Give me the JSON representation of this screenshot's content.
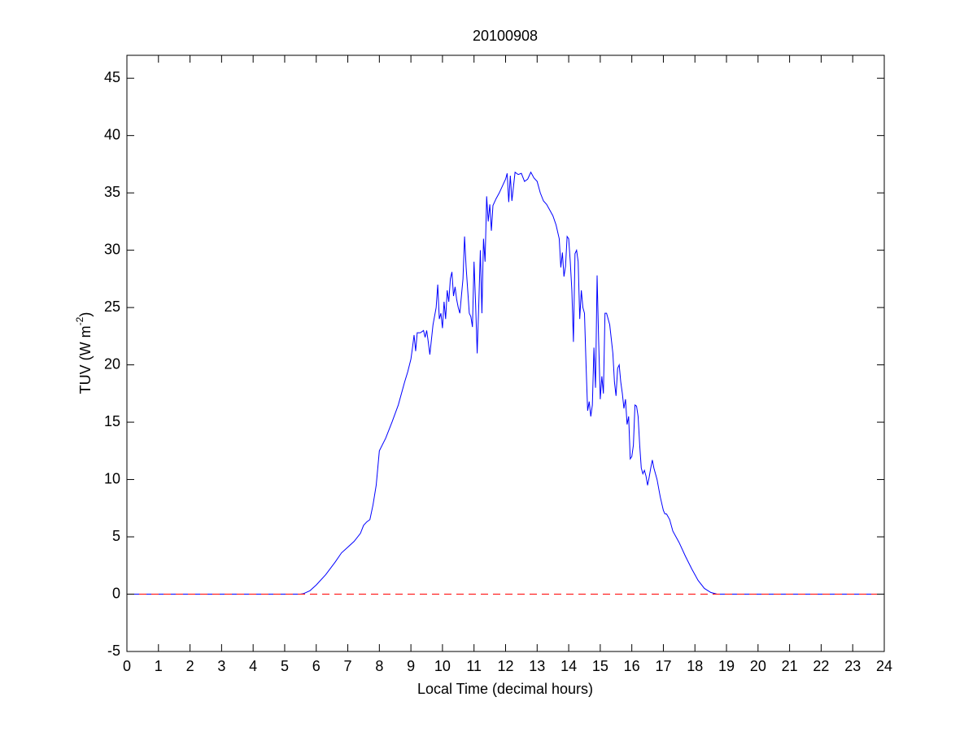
{
  "chart_data": {
    "type": "line",
    "title": "20100908",
    "xlabel": "Local Time (decimal hours)",
    "ylabel": [
      "TUV (W m",
      "-2",
      ")"
    ],
    "xlim": [
      0,
      24
    ],
    "ylim": [
      -5,
      47
    ],
    "xticks": [
      0,
      1,
      2,
      3,
      4,
      5,
      6,
      7,
      8,
      9,
      10,
      11,
      12,
      13,
      14,
      15,
      16,
      17,
      18,
      19,
      20,
      21,
      22,
      23,
      24
    ],
    "yticks": [
      -5,
      0,
      5,
      10,
      15,
      20,
      25,
      30,
      35,
      40,
      45
    ],
    "grid": false,
    "box": true,
    "series": [
      {
        "color": "#0000ff",
        "style": "solid",
        "x": [
          0,
          5.5,
          5.6,
          5.8,
          6,
          6.3,
          6.6,
          6.8,
          7,
          7.2,
          7.4,
          7.5,
          7.6,
          7.7,
          7.8,
          7.9,
          7.95,
          8,
          8.2,
          8.4,
          8.6,
          8.8,
          8.9,
          9,
          9.05,
          9.1,
          9.15,
          9.2,
          9.3,
          9.4,
          9.45,
          9.5,
          9.55,
          9.6,
          9.7,
          9.8,
          9.85,
          9.9,
          9.95,
          10,
          10.05,
          10.1,
          10.15,
          10.2,
          10.25,
          10.3,
          10.35,
          10.4,
          10.45,
          10.5,
          10.55,
          10.6,
          10.65,
          10.7,
          10.75,
          10.8,
          10.85,
          10.9,
          10.95,
          11,
          11.05,
          11.1,
          11.15,
          11.2,
          11.25,
          11.3,
          11.35,
          11.4,
          11.45,
          11.5,
          11.55,
          11.6,
          11.7,
          11.8,
          11.9,
          12,
          12.05,
          12.1,
          12.15,
          12.2,
          12.3,
          12.4,
          12.5,
          12.6,
          12.7,
          12.8,
          12.9,
          13,
          13.1,
          13.2,
          13.3,
          13.4,
          13.5,
          13.6,
          13.7,
          13.75,
          13.8,
          13.85,
          13.9,
          13.95,
          14,
          14.05,
          14.1,
          14.15,
          14.2,
          14.25,
          14.3,
          14.35,
          14.4,
          14.45,
          14.5,
          14.55,
          14.6,
          14.65,
          14.7,
          14.75,
          14.8,
          14.85,
          14.9,
          14.95,
          15,
          15.05,
          15.1,
          15.15,
          15.2,
          15.3,
          15.4,
          15.45,
          15.5,
          15.55,
          15.6,
          15.65,
          15.7,
          15.75,
          15.8,
          15.85,
          15.9,
          15.95,
          16,
          16.05,
          16.1,
          16.15,
          16.2,
          16.25,
          16.3,
          16.35,
          16.4,
          16.45,
          16.5,
          16.55,
          16.6,
          16.65,
          16.7,
          16.8,
          16.9,
          17,
          17.05,
          17.1,
          17.2,
          17.3,
          17.5,
          17.7,
          17.9,
          18.1,
          18.3,
          18.5,
          18.7,
          24
        ],
        "values": [
          0,
          0,
          0.05,
          0.3,
          0.8,
          1.7,
          2.8,
          3.6,
          4.1,
          4.6,
          5.3,
          6,
          6.3,
          6.5,
          7.8,
          9.5,
          11,
          12.5,
          13.6,
          15,
          16.5,
          18.5,
          19.4,
          20.5,
          21.5,
          22.6,
          21.2,
          22.8,
          22.8,
          23,
          22.4,
          23,
          22,
          20.9,
          23.5,
          25,
          27,
          24,
          24.5,
          23.2,
          25.5,
          24,
          26.5,
          25.5,
          27.5,
          28.1,
          26,
          26.8,
          25.7,
          25,
          24.5,
          26,
          27.5,
          31.2,
          28.5,
          26.5,
          24.5,
          24.2,
          23.3,
          29,
          25.3,
          21,
          25.2,
          30,
          24.5,
          31,
          29,
          34.7,
          32.5,
          34,
          31.7,
          33.9,
          34.5,
          35,
          35.6,
          36.2,
          36.7,
          34.2,
          36.5,
          34.3,
          36.8,
          36.6,
          36.7,
          36,
          36.2,
          36.8,
          36.3,
          36,
          35,
          34.3,
          34,
          33.5,
          33,
          32.2,
          31,
          28.5,
          29.8,
          27.7,
          28.6,
          31.2,
          31,
          29,
          26.5,
          22,
          29.7,
          30,
          29,
          24,
          26.5,
          25,
          24.5,
          20,
          16,
          16.8,
          15.5,
          16.5,
          21.5,
          18,
          27.8,
          22,
          17,
          19,
          17.5,
          24.5,
          24.5,
          23.5,
          21,
          18.5,
          17.3,
          19.7,
          20,
          18.5,
          17.5,
          16.2,
          17,
          14.8,
          15.5,
          11.8,
          12,
          13,
          16.5,
          16.4,
          15.5,
          13,
          11,
          10.5,
          10.8,
          10.3,
          9.5,
          10.2,
          11,
          11.7,
          11,
          10,
          8.5,
          7.3,
          7,
          7,
          6.5,
          5.5,
          4.5,
          3.3,
          2.2,
          1.2,
          0.5,
          0.15,
          0,
          0
        ]
      },
      {
        "color": "#ff0000",
        "style": "dashed",
        "x": [
          0,
          24
        ],
        "values": [
          0,
          0
        ]
      }
    ]
  }
}
